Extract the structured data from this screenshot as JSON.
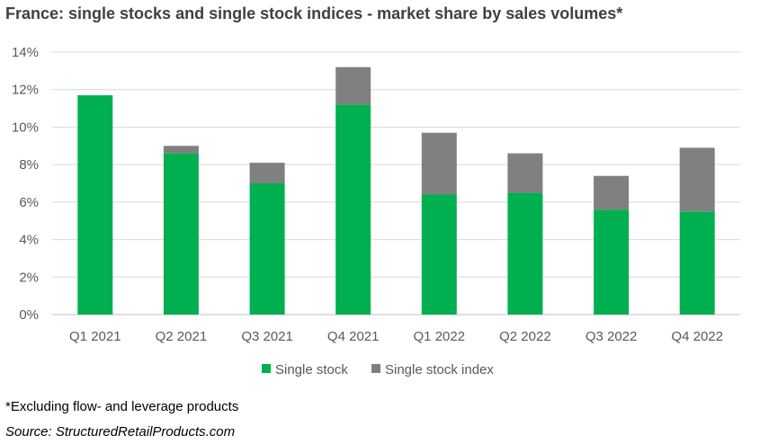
{
  "title": "France: single stocks and single stock indices - market share by sales volumes*",
  "footnote": "*Excluding flow- and leverage products",
  "source": "Source: StructuredRetailProducts.com",
  "colors": {
    "single_stock": "#00B050",
    "single_stock_index": "#808080",
    "grid": "#D9D9D9",
    "axis": "#BFBFBF"
  },
  "chart_data": {
    "type": "bar",
    "stacked": true,
    "title": "France: single stocks and single stock indices - market share by sales volumes*",
    "categories": [
      "Q1 2021",
      "Q2 2021",
      "Q3 2021",
      "Q4 2021",
      "Q1 2022",
      "Q2 2022",
      "Q3 2022",
      "Q4 2022"
    ],
    "series": [
      {
        "name": "Single stock",
        "values": [
          11.7,
          8.6,
          7.0,
          11.2,
          6.4,
          6.5,
          5.6,
          5.5
        ]
      },
      {
        "name": "Single stock index",
        "values": [
          0.0,
          0.4,
          1.1,
          2.0,
          3.3,
          2.1,
          1.8,
          3.4
        ]
      }
    ],
    "ylim": [
      0,
      14
    ],
    "yticks": [
      "0%",
      "2%",
      "4%",
      "6%",
      "8%",
      "10%",
      "12%",
      "14%"
    ],
    "ytick_values": [
      0,
      2,
      4,
      6,
      8,
      10,
      12,
      14
    ],
    "grid": true,
    "legend": "bottom"
  }
}
